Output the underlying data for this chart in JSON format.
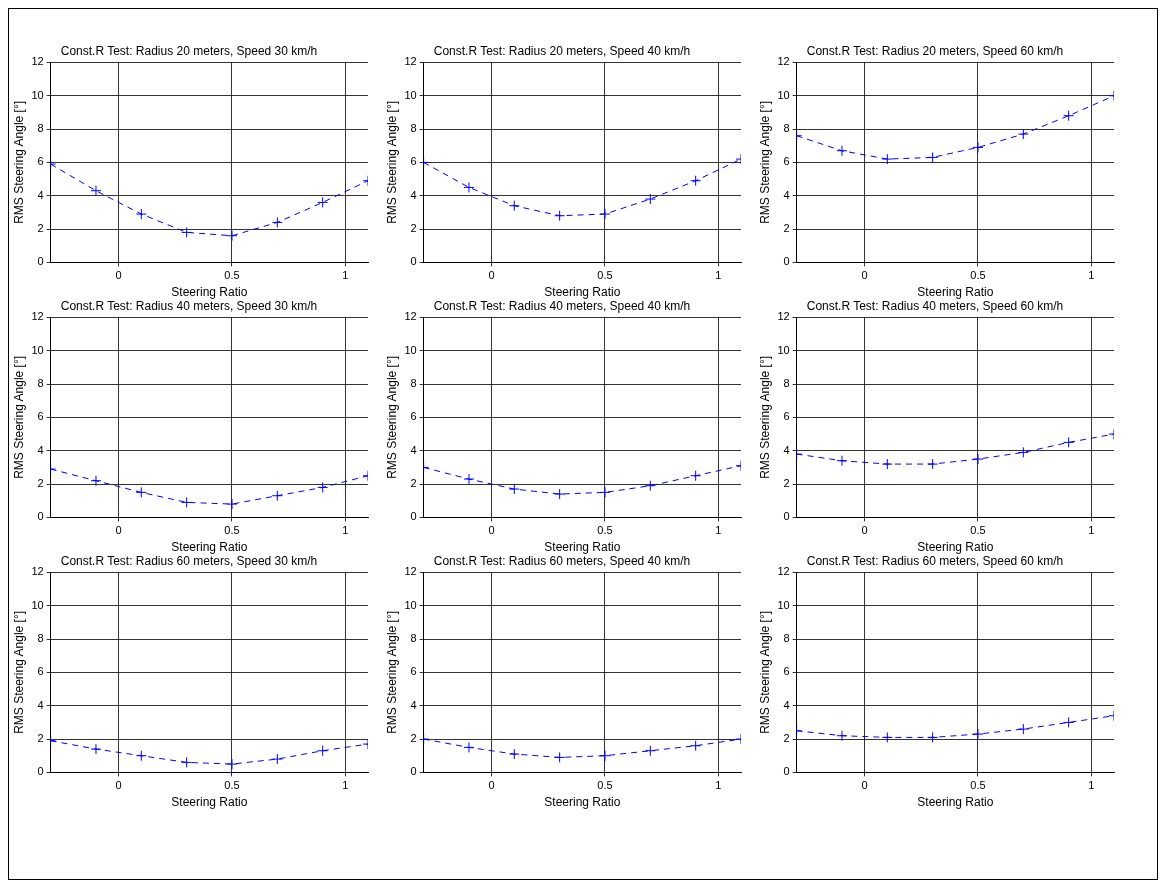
{
  "chart_data": [
    {
      "type": "line",
      "title": "Const.R Test: Radius 20 meters, Speed 30 km/h",
      "xlabel": "Steering Ratio",
      "ylabel": "RMS Steering Angle [°]",
      "x": [
        -0.3,
        -0.1,
        0.1,
        0.3,
        0.5,
        0.7,
        0.9,
        1.1
      ],
      "series": [
        {
          "color": "#0000ff",
          "values": [
            5.9,
            4.3,
            2.9,
            1.8,
            1.6,
            2.4,
            3.6,
            4.9
          ]
        }
      ],
      "xlim": [
        -0.3,
        1.1
      ],
      "xticks": [
        0,
        0.5,
        1
      ],
      "ylim": [
        0,
        12
      ],
      "yticks": [
        0,
        2,
        4,
        6,
        8,
        10,
        12
      ],
      "grid": true,
      "marker": "cross",
      "line_style": "dashed"
    },
    {
      "type": "line",
      "title": "Const.R Test: Radius 20 meters, Speed 40 km/h",
      "xlabel": "Steering Ratio",
      "ylabel": "RMS Steering Angle [°]",
      "x": [
        -0.3,
        -0.1,
        0.1,
        0.3,
        0.5,
        0.7,
        0.9,
        1.1
      ],
      "series": [
        {
          "color": "#0000ff",
          "values": [
            6.0,
            4.5,
            3.4,
            2.8,
            2.9,
            3.8,
            4.9,
            6.2
          ]
        }
      ],
      "xlim": [
        -0.3,
        1.1
      ],
      "xticks": [
        0,
        0.5,
        1
      ],
      "ylim": [
        0,
        12
      ],
      "yticks": [
        0,
        2,
        4,
        6,
        8,
        10,
        12
      ],
      "grid": true,
      "marker": "cross",
      "line_style": "dashed"
    },
    {
      "type": "line",
      "title": "Const.R Test: Radius 20 meters, Speed 60 km/h",
      "xlabel": "Steering Ratio",
      "ylabel": "RMS Steering Angle [°]",
      "x": [
        -0.3,
        -0.1,
        0.1,
        0.3,
        0.5,
        0.7,
        0.9,
        1.1
      ],
      "series": [
        {
          "color": "#0000ff",
          "values": [
            7.6,
            6.7,
            6.2,
            6.3,
            6.9,
            7.7,
            8.8,
            10.0
          ]
        }
      ],
      "xlim": [
        -0.3,
        1.1
      ],
      "xticks": [
        0,
        0.5,
        1
      ],
      "ylim": [
        0,
        12
      ],
      "yticks": [
        0,
        2,
        4,
        6,
        8,
        10,
        12
      ],
      "grid": true,
      "marker": "cross",
      "line_style": "dashed"
    },
    {
      "type": "line",
      "title": "Const.R Test: Radius 40 meters, Speed 30 km/h",
      "xlabel": "Steering Ratio",
      "ylabel": "RMS Steering Angle [°]",
      "x": [
        -0.3,
        -0.1,
        0.1,
        0.3,
        0.5,
        0.7,
        0.9,
        1.1
      ],
      "series": [
        {
          "color": "#0000ff",
          "values": [
            2.9,
            2.2,
            1.5,
            0.9,
            0.8,
            1.3,
            1.8,
            2.5
          ]
        }
      ],
      "xlim": [
        -0.3,
        1.1
      ],
      "xticks": [
        0,
        0.5,
        1
      ],
      "ylim": [
        0,
        12
      ],
      "yticks": [
        0,
        2,
        4,
        6,
        8,
        10,
        12
      ],
      "grid": true,
      "marker": "cross",
      "line_style": "dashed"
    },
    {
      "type": "line",
      "title": "Const.R Test: Radius 40 meters, Speed 40 km/h",
      "xlabel": "Steering Ratio",
      "ylabel": "RMS Steering Angle [°]",
      "x": [
        -0.3,
        -0.1,
        0.1,
        0.3,
        0.5,
        0.7,
        0.9,
        1.1
      ],
      "series": [
        {
          "color": "#0000ff",
          "values": [
            3.0,
            2.3,
            1.7,
            1.4,
            1.5,
            1.9,
            2.5,
            3.1
          ]
        }
      ],
      "xlim": [
        -0.3,
        1.1
      ],
      "xticks": [
        0,
        0.5,
        1
      ],
      "ylim": [
        0,
        12
      ],
      "yticks": [
        0,
        2,
        4,
        6,
        8,
        10,
        12
      ],
      "grid": true,
      "marker": "cross",
      "line_style": "dashed"
    },
    {
      "type": "line",
      "title": "Const.R Test: Radius 40 meters, Speed 60 km/h",
      "xlabel": "Steering Ratio",
      "ylabel": "RMS Steering Angle [°]",
      "x": [
        -0.3,
        -0.1,
        0.1,
        0.3,
        0.5,
        0.7,
        0.9,
        1.1
      ],
      "series": [
        {
          "color": "#0000ff",
          "values": [
            3.8,
            3.4,
            3.2,
            3.2,
            3.5,
            3.9,
            4.5,
            5.0
          ]
        }
      ],
      "xlim": [
        -0.3,
        1.1
      ],
      "xticks": [
        0,
        0.5,
        1
      ],
      "ylim": [
        0,
        12
      ],
      "yticks": [
        0,
        2,
        4,
        6,
        8,
        10,
        12
      ],
      "grid": true,
      "marker": "cross",
      "line_style": "dashed"
    },
    {
      "type": "line",
      "title": "Const.R Test: Radius 60 meters, Speed 30 km/h",
      "xlabel": "Steering Ratio",
      "ylabel": "RMS Steering Angle [°]",
      "x": [
        -0.3,
        -0.1,
        0.1,
        0.3,
        0.5,
        0.7,
        0.9,
        1.1
      ],
      "series": [
        {
          "color": "#0000ff",
          "values": [
            1.9,
            1.4,
            1.0,
            0.6,
            0.5,
            0.8,
            1.3,
            1.7
          ]
        }
      ],
      "xlim": [
        -0.3,
        1.1
      ],
      "xticks": [
        0,
        0.5,
        1
      ],
      "ylim": [
        0,
        12
      ],
      "yticks": [
        0,
        2,
        4,
        6,
        8,
        10,
        12
      ],
      "grid": true,
      "marker": "cross",
      "line_style": "dashed"
    },
    {
      "type": "line",
      "title": "Const.R Test: Radius 60 meters, Speed 40 km/h",
      "xlabel": "Steering Ratio",
      "ylabel": "RMS Steering Angle [°]",
      "x": [
        -0.3,
        -0.1,
        0.1,
        0.3,
        0.5,
        0.7,
        0.9,
        1.1
      ],
      "series": [
        {
          "color": "#0000ff",
          "values": [
            2.0,
            1.5,
            1.1,
            0.9,
            1.0,
            1.3,
            1.6,
            2.0
          ]
        }
      ],
      "xlim": [
        -0.3,
        1.1
      ],
      "xticks": [
        0,
        0.5,
        1
      ],
      "ylim": [
        0,
        12
      ],
      "yticks": [
        0,
        2,
        4,
        6,
        8,
        10,
        12
      ],
      "grid": true,
      "marker": "cross",
      "line_style": "dashed"
    },
    {
      "type": "line",
      "title": "Const.R Test: Radius 60 meters, Speed 60 km/h",
      "xlabel": "Steering Ratio",
      "ylabel": "RMS Steering Angle [°]",
      "x": [
        -0.3,
        -0.1,
        0.1,
        0.3,
        0.5,
        0.7,
        0.9,
        1.1
      ],
      "series": [
        {
          "color": "#0000ff",
          "values": [
            2.5,
            2.2,
            2.1,
            2.1,
            2.3,
            2.6,
            3.0,
            3.4
          ]
        }
      ],
      "xlim": [
        -0.3,
        1.1
      ],
      "xticks": [
        0,
        0.5,
        1
      ],
      "ylim": [
        0,
        12
      ],
      "yticks": [
        0,
        2,
        4,
        6,
        8,
        10,
        12
      ],
      "grid": true,
      "marker": "cross",
      "line_style": "dashed"
    }
  ]
}
